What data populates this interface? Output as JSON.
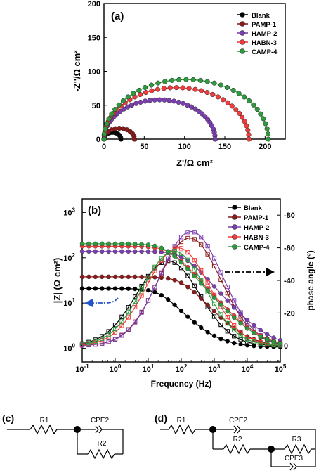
{
  "chart_data": [
    {
      "type": "scatter",
      "panel": "(a)",
      "xlabel": "Z'/Ω cm²",
      "ylabel": "-Z''/Ω cm²",
      "xlim": [
        0,
        225
      ],
      "ylim": [
        0,
        200
      ],
      "xticks": [
        "0",
        "50",
        "100",
        "150",
        "200"
      ],
      "yticks": [
        "0",
        "50",
        "100",
        "150",
        "200"
      ],
      "legend_position": "top-right",
      "series": [
        {
          "name": "Blank",
          "diameter": 21,
          "peak": 10,
          "x": [
            1,
            5,
            10,
            14,
            18,
            21
          ],
          "y": [
            1,
            6,
            10,
            8,
            4,
            0
          ]
        },
        {
          "name": "PAMP-1",
          "diameter": 38,
          "peak": 16,
          "x": [
            2,
            8,
            15,
            22,
            29,
            35,
            38
          ],
          "y": [
            3,
            10,
            15,
            16,
            12,
            6,
            0
          ]
        },
        {
          "name": "HAMP-2",
          "diameter": 138,
          "peak": 58,
          "x": [
            5,
            25,
            50,
            75,
            100,
            122,
            138
          ],
          "y": [
            5,
            35,
            52,
            58,
            50,
            30,
            0
          ]
        },
        {
          "name": "HABN-3",
          "diameter": 180,
          "peak": 76,
          "x": [
            6,
            30,
            60,
            95,
            130,
            160,
            180
          ],
          "y": [
            6,
            45,
            68,
            76,
            68,
            40,
            0
          ]
        },
        {
          "name": "CAMP-4",
          "diameter": 204,
          "peak": 88,
          "x": [
            7,
            35,
            70,
            105,
            140,
            180,
            204
          ],
          "y": [
            7,
            52,
            78,
            88,
            80,
            50,
            0
          ]
        }
      ]
    },
    {
      "type": "line",
      "panel": "(b)",
      "xlabel": "Frequency (Hz)",
      "ylabel_left": "|Z| (Ω cm²)",
      "ylabel_right": "phase angle (°)",
      "x_scale": "log",
      "xlim": [
        0.1,
        100000
      ],
      "ylim_left": [
        0.5,
        2000
      ],
      "ylim_right": [
        10,
        -90
      ],
      "xtick_exponents": [
        "-1",
        "0",
        "1",
        "2",
        "3",
        "4",
        "5"
      ],
      "ytick_exponents_left": [
        "0",
        "1",
        "2",
        "3"
      ],
      "yticks_right": [
        "0",
        "-20",
        "-40",
        "-60",
        "-80"
      ],
      "legend_position": "top-right",
      "series": [
        {
          "name": "Blank",
          "rs": 1.05,
          "rct": 21,
          "phase_peak": -52,
          "peak_freq": 40
        },
        {
          "name": "PAMP-1",
          "rs": 1.05,
          "rct": 38,
          "phase_peak": -66,
          "peak_freq": 180
        },
        {
          "name": "HAMP-2",
          "rs": 1.05,
          "rct": 138,
          "phase_peak": -70,
          "peak_freq": 200
        },
        {
          "name": "HABN-3",
          "rs": 1.05,
          "rct": 180,
          "phase_peak": -60,
          "peak_freq": 80
        },
        {
          "name": "CAMP-4",
          "rs": 1.05,
          "rct": 204,
          "phase_peak": -58,
          "peak_freq": 60
        }
      ]
    }
  ],
  "colors": {
    "Blank": "#000000",
    "PAMP-1": "#8b1a1a",
    "HAMP-2": "#7b3fb0",
    "HABN-3": "#f03c3c",
    "CAMP-4": "#2e9a3e",
    "arrow_left": "#2255cc",
    "arrow_right": "#000000"
  },
  "circuits": {
    "c": {
      "label": "(c)",
      "elements": [
        "R1",
        "CPE2",
        "R2"
      ]
    },
    "d": {
      "label": "(d)",
      "elements": [
        "R1",
        "CPE2",
        "R2",
        "R3",
        "CPE3"
      ]
    }
  }
}
